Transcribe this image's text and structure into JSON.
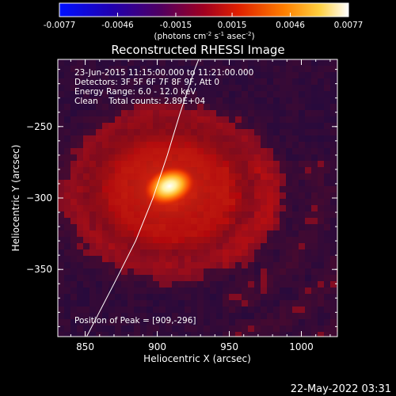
{
  "colorbar": {
    "ticks": [
      "-0.0077",
      "-0.0046",
      "-0.0015",
      "0.0015",
      "0.0046",
      "0.0077"
    ],
    "unit_prefix": "(photons cm",
    "unit_exp1": "-2",
    "unit_mid1": " s",
    "unit_exp2": "-1",
    "unit_mid2": " asec",
    "unit_exp3": "-2",
    "unit_suffix": ")",
    "range": [
      -0.0077,
      0.0077
    ],
    "colors": [
      "#0010ff",
      "#2a00a0",
      "#600060",
      "#c80010",
      "#ff3000",
      "#ff9000",
      "#ffe050",
      "#ffffff"
    ]
  },
  "chart_data": {
    "type": "heatmap",
    "title": "Reconstructed RHESSI Image",
    "xlabel": "Heliocentric X (arcsec)",
    "ylabel": "Heliocentric Y (arcsec)",
    "xlim": [
      831,
      1025
    ],
    "ylim": [
      -397,
      -203
    ],
    "xticks": [
      850,
      900,
      950,
      1000
    ],
    "yticks": [
      -250,
      -300,
      -350
    ],
    "info_lines": [
      "23-Jun-2015 11:15:00.000 to 11:21:00.000",
      "Detectors: 3F 5F 6F 7F 8F 9F, Att 0",
      "Energy Range: 6.0 - 12.0 keV",
      "Clean    Total counts: 2.89E+04"
    ],
    "peak_label": "Position of Peak = [909,-296]",
    "peak": [
      909,
      -296
    ],
    "limb_curve": [
      [
        851,
        -397
      ],
      [
        870,
        -360
      ],
      [
        885,
        -330
      ],
      [
        897,
        -300
      ],
      [
        907,
        -270
      ],
      [
        916,
        -240
      ],
      [
        926,
        -210
      ],
      [
        931,
        -197
      ]
    ]
  },
  "footer": {
    "timestamp": "22-May-2022 03:31"
  }
}
